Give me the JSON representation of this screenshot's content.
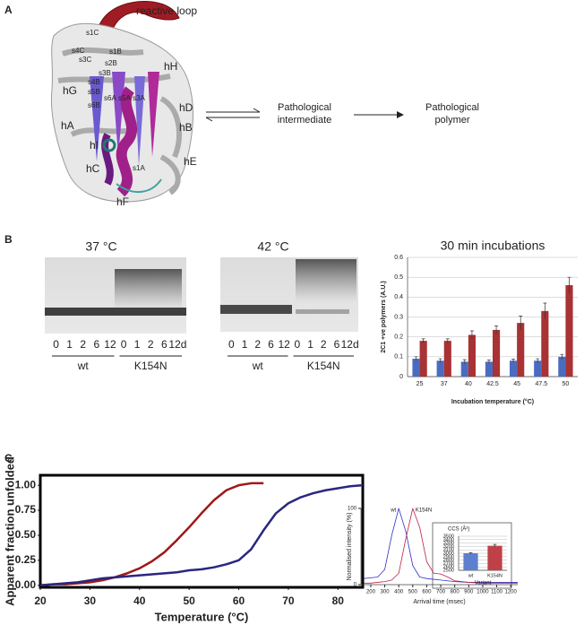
{
  "panel_labels": [
    "A",
    "B",
    "C"
  ],
  "structure_labels": [
    "reactive loop",
    "s1C",
    "s4C",
    "s3C",
    "s1B",
    "s2B",
    "hH",
    "s3B",
    "s4B",
    "hG",
    "s5B",
    "s6B",
    "s6A",
    "s5A",
    "s3A",
    "hD",
    "hA",
    "hB",
    "hI",
    "hC",
    "s1A",
    "hE",
    "hF"
  ],
  "scheme": {
    "intermediate": [
      "Pathological",
      "intermediate"
    ],
    "polymer": [
      "Pathological",
      "polymer"
    ]
  },
  "gels": [
    {
      "title": "37 °C",
      "lanes": [
        "0",
        "1",
        "2",
        "6",
        "12",
        "0",
        "1",
        "2",
        "6",
        "12d"
      ],
      "groups": [
        "wt",
        "K154N"
      ]
    },
    {
      "title": "42 °C",
      "lanes": [
        "0",
        "1",
        "2",
        "6",
        "12",
        "0",
        "1",
        "2",
        "6",
        "12d"
      ],
      "groups": [
        "wt",
        "K154N"
      ]
    }
  ],
  "chart_data": [
    {
      "type": "bar",
      "title": "30 min incubations",
      "xlabel": "Incubation temperature (°C)",
      "ylabel": "2C1 +ve polymers (A.U.)",
      "categories": [
        "25",
        "37",
        "40",
        "42.5",
        "45",
        "47.5",
        "50"
      ],
      "series": [
        {
          "color": "#4a6cc0",
          "values": [
            0.09,
            0.08,
            0.075,
            0.075,
            0.08,
            0.08,
            0.1
          ],
          "errors": [
            0.01,
            0.01,
            0.01,
            0.008,
            0.008,
            0.01,
            0.012
          ]
        },
        {
          "color": "#a83234",
          "values": [
            0.18,
            0.18,
            0.21,
            0.235,
            0.27,
            0.33,
            0.46
          ],
          "errors": [
            0.01,
            0.01,
            0.02,
            0.02,
            0.035,
            0.04,
            0.04
          ]
        }
      ],
      "ylim": [
        0,
        0.6
      ],
      "yticks": [
        0,
        0.1,
        0.2,
        0.3,
        0.4,
        0.5,
        0.6
      ],
      "grid": true
    },
    {
      "type": "line",
      "xlabel": "Temperature (°C)",
      "ylabel": "Apparent fraction unfolded",
      "xlim": [
        20,
        85
      ],
      "xticks": [
        20,
        30,
        40,
        50,
        60,
        70,
        80
      ],
      "ylim": [
        -0.02,
        1.1
      ],
      "yticks": [
        {
          "value": 0,
          "label": "0.00"
        },
        {
          "value": 0.25,
          "label": "0.25"
        },
        {
          "value": 0.5,
          "label": "0.50"
        },
        {
          "value": 0.75,
          "label": "0.75"
        },
        {
          "value": 1,
          "label": "1.00"
        }
      ],
      "series": [
        {
          "color": "#a01818",
          "x": [
            20,
            22.5,
            25,
            27.5,
            30,
            32.5,
            35,
            37.5,
            40,
            42.5,
            45,
            47.5,
            50,
            52.5,
            55,
            57.5,
            60,
            62.5,
            65
          ],
          "values": [
            0.0,
            0.01,
            0.01,
            0.02,
            0.03,
            0.05,
            0.08,
            0.12,
            0.17,
            0.24,
            0.33,
            0.45,
            0.58,
            0.72,
            0.85,
            0.95,
            1.0,
            1.02,
            1.02
          ]
        },
        {
          "color": "#2a2680",
          "x": [
            20,
            22.5,
            25,
            27.5,
            30,
            32.5,
            35,
            37.5,
            40,
            42.5,
            45,
            47.5,
            50,
            52.5,
            55,
            57.5,
            60,
            62.5,
            65,
            67.5,
            70,
            72.5,
            75,
            77.5,
            80,
            82.5,
            85
          ],
          "values": [
            0.0,
            0.01,
            0.02,
            0.03,
            0.05,
            0.07,
            0.08,
            0.09,
            0.1,
            0.11,
            0.12,
            0.13,
            0.15,
            0.16,
            0.18,
            0.21,
            0.25,
            0.36,
            0.55,
            0.72,
            0.82,
            0.88,
            0.92,
            0.95,
            0.97,
            0.99,
            1.0
          ]
        }
      ]
    },
    {
      "type": "line",
      "xlabel": "Arrival time (msec)",
      "ylabel": "Normalised intensity (%)",
      "xlim": [
        130,
        1250
      ],
      "xticks": [
        200,
        300,
        400,
        500,
        600,
        700,
        800,
        900,
        1000,
        1100,
        1200
      ],
      "ylim": [
        0,
        100
      ],
      "yticks": [
        0,
        100
      ],
      "series_labels": true,
      "series": [
        {
          "name": "wt",
          "color": "#3030c8",
          "x": [
            150,
            200,
            250,
            300,
            350,
            400,
            450,
            500,
            550,
            600,
            650,
            700,
            750,
            800,
            900,
            1000,
            1100,
            1200,
            1250
          ],
          "values": [
            8,
            9,
            10,
            20,
            65,
            100,
            70,
            25,
            10,
            8,
            7,
            6,
            5,
            4,
            3,
            3,
            3,
            3,
            3
          ]
        },
        {
          "name": "K154N",
          "color": "#c02040",
          "x": [
            150,
            200,
            250,
            300,
            350,
            400,
            450,
            500,
            550,
            600,
            650,
            700,
            750,
            800,
            900,
            1000,
            1100,
            1200,
            1250
          ],
          "values": [
            2,
            2,
            3,
            4,
            6,
            15,
            60,
            100,
            75,
            30,
            15,
            14,
            10,
            5,
            3,
            2,
            2,
            2,
            2
          ]
        }
      ]
    },
    {
      "type": "bar",
      "title": "CCS (Å²)",
      "xlabel": "Variant",
      "categories": [
        "wt",
        "K154N"
      ],
      "inset": true,
      "series": [
        {
          "colors": [
            "#5d7fd0",
            "#c04048"
          ],
          "values": [
            3000,
            3220
          ],
          "errors": [
            20,
            40
          ]
        }
      ],
      "ylim": [
        2500,
        3500
      ],
      "yticks": [
        2500,
        2600,
        2700,
        2800,
        2900,
        3000,
        3100,
        3200,
        3300,
        3400,
        3500
      ],
      "grid": true
    }
  ]
}
